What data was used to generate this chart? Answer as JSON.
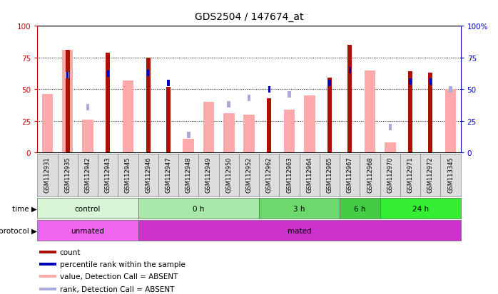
{
  "title": "GDS2504 / 147674_at",
  "samples": [
    "GSM112931",
    "GSM112935",
    "GSM112942",
    "GSM112943",
    "GSM112945",
    "GSM112946",
    "GSM112947",
    "GSM112948",
    "GSM112949",
    "GSM112950",
    "GSM112952",
    "GSM112962",
    "GSM112963",
    "GSM112964",
    "GSM112965",
    "GSM112967",
    "GSM112968",
    "GSM112970",
    "GSM112971",
    "GSM112972",
    "GSM113345"
  ],
  "count": [
    null,
    81,
    null,
    79,
    null,
    75,
    52,
    null,
    null,
    null,
    null,
    43,
    null,
    null,
    59,
    85,
    null,
    null,
    64,
    63,
    null
  ],
  "percentile_rank": [
    null,
    61,
    null,
    62,
    null,
    63,
    55,
    null,
    null,
    null,
    null,
    50,
    null,
    null,
    55,
    65,
    null,
    null,
    56,
    56,
    null
  ],
  "value_absent": [
    46,
    81,
    26,
    null,
    57,
    null,
    null,
    11,
    40,
    31,
    30,
    null,
    34,
    45,
    null,
    null,
    65,
    8,
    null,
    null,
    50
  ],
  "rank_absent": [
    null,
    61,
    36,
    null,
    null,
    null,
    null,
    14,
    null,
    38,
    43,
    null,
    46,
    null,
    null,
    null,
    null,
    20,
    null,
    null,
    50
  ],
  "time_groups": [
    {
      "label": "control",
      "start": 0,
      "end": 5
    },
    {
      "label": "0 h",
      "start": 5,
      "end": 11
    },
    {
      "label": "3 h",
      "start": 11,
      "end": 15
    },
    {
      "label": "6 h",
      "start": 15,
      "end": 17
    },
    {
      "label": "24 h",
      "start": 17,
      "end": 21
    }
  ],
  "time_colors": [
    "#d8f5d8",
    "#a8e8a8",
    "#6dd96d",
    "#44cc44",
    "#33ee33"
  ],
  "protocol_groups": [
    {
      "label": "unmated",
      "start": 0,
      "end": 5
    },
    {
      "label": "mated",
      "start": 5,
      "end": 21
    }
  ],
  "protocol_colors": [
    "#ee66ee",
    "#cc33cc"
  ],
  "bar_color_count": "#aa1100",
  "bar_color_percentile": "#0000bb",
  "bar_color_value_absent": "#ffaaaa",
  "bar_color_rank_absent": "#aaaadd",
  "ylim": [
    0,
    100
  ],
  "title_fontsize": 10,
  "axis_left_color": "#cc0000",
  "axis_right_color": "#0000cc",
  "legend_items": [
    {
      "color": "#aa1100",
      "label": "count"
    },
    {
      "color": "#0000bb",
      "label": "percentile rank within the sample"
    },
    {
      "color": "#ffaaaa",
      "label": "value, Detection Call = ABSENT"
    },
    {
      "color": "#aaaadd",
      "label": "rank, Detection Call = ABSENT"
    }
  ]
}
